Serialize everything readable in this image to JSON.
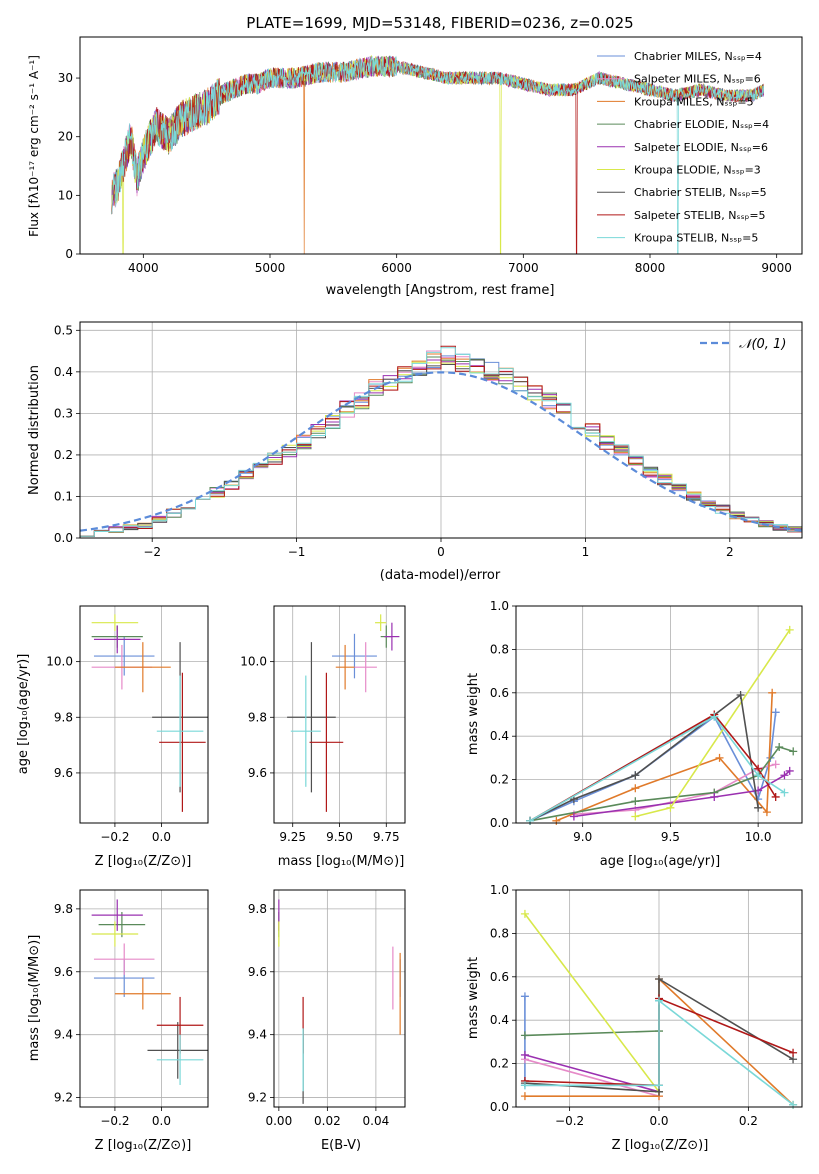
{
  "colors": [
    "#6a8fd8",
    "#e68ac8",
    "#e07a2a",
    "#5a8a5a",
    "#9a30b0",
    "#d8e84a",
    "#505050",
    "#b01818",
    "#7ad8d8"
  ],
  "chart_data": [
    {
      "type": "line",
      "title": "PLATE=1699, MJD=53148, FIBERID=0236, z=0.025",
      "xlabel": "wavelength [Angstrom, rest frame]",
      "ylabel": "Flux [fλ10⁻¹⁷ erg cm⁻² s⁻¹ A⁻¹]",
      "xlim": [
        3500,
        9200
      ],
      "ylim": [
        0,
        37
      ],
      "xticks": [
        4000,
        5000,
        6000,
        7000,
        8000,
        9000
      ],
      "yticks": [
        0,
        10,
        20,
        30
      ],
      "grid": false,
      "legend": "top-right",
      "series": [
        {
          "name": "Chabrier MILES, Nₛₛₚ=4"
        },
        {
          "name": "Salpeter MILES, Nₛₛₚ=6"
        },
        {
          "name": "Kroupa MILES, Nₛₛₚ=5"
        },
        {
          "name": "Chabrier ELODIE, Nₛₛₚ=4"
        },
        {
          "name": "Salpeter ELODIE, Nₛₛₚ=6"
        },
        {
          "name": "Kroupa ELODIE, Nₛₛₚ=3"
        },
        {
          "name": "Chabrier STELIB, Nₛₛₚ=5"
        },
        {
          "name": "Salpeter STELIB, Nₛₛₚ=5"
        },
        {
          "name": "Kroupa STELIB, Nₛₛₚ=5"
        }
      ],
      "envelope": {
        "x": [
          3750,
          3800,
          3850,
          3900,
          3950,
          4000,
          4100,
          4200,
          4300,
          4400,
          4500,
          4600,
          4700,
          4800,
          4900,
          5000,
          5200,
          5400,
          5600,
          5800,
          6000,
          6200,
          6400,
          6600,
          6800,
          7000,
          7200,
          7400,
          7600,
          7800,
          8000,
          8200,
          8400,
          8600,
          8800,
          8900
        ],
        "y": [
          10,
          12,
          16,
          20,
          13,
          17,
          22,
          20,
          23,
          24,
          25,
          27,
          28,
          29,
          29,
          30,
          30,
          31,
          31,
          32,
          32,
          31,
          30,
          30,
          30,
          29,
          28,
          28,
          30,
          29,
          28,
          27,
          28,
          27,
          27,
          28
        ]
      }
    },
    {
      "type": "histogram",
      "xlabel": "(data-model)/error",
      "ylabel": "Normed distribution",
      "xlim": [
        -2.5,
        2.5
      ],
      "ylim": [
        0,
        0.52
      ],
      "xticks": [
        -2,
        -1,
        0,
        1,
        2
      ],
      "yticks": [
        0.0,
        0.1,
        0.2,
        0.3,
        0.4,
        0.5
      ],
      "legend_label": "𝒩(0, 1)",
      "bins": [
        -2.5,
        -2.4,
        -2.3,
        -2.2,
        -2.1,
        -2.0,
        -1.9,
        -1.8,
        -1.7,
        -1.6,
        -1.5,
        -1.4,
        -1.3,
        -1.2,
        -1.1,
        -1.0,
        -0.9,
        -0.8,
        -0.7,
        -0.6,
        -0.5,
        -0.4,
        -0.3,
        -0.2,
        -0.1,
        0.0,
        0.1,
        0.2,
        0.3,
        0.4,
        0.5,
        0.6,
        0.7,
        0.8,
        0.9,
        1.0,
        1.1,
        1.2,
        1.3,
        1.4,
        1.5,
        1.6,
        1.7,
        1.8,
        1.9,
        2.0,
        2.1,
        2.2,
        2.3,
        2.4,
        2.5
      ],
      "mean_heights": [
        0.01,
        0.015,
        0.02,
        0.025,
        0.03,
        0.045,
        0.06,
        0.075,
        0.09,
        0.11,
        0.13,
        0.15,
        0.17,
        0.19,
        0.21,
        0.23,
        0.26,
        0.28,
        0.31,
        0.33,
        0.36,
        0.37,
        0.39,
        0.41,
        0.43,
        0.44,
        0.42,
        0.41,
        0.4,
        0.39,
        0.37,
        0.35,
        0.33,
        0.31,
        0.28,
        0.26,
        0.23,
        0.21,
        0.19,
        0.16,
        0.14,
        0.12,
        0.1,
        0.085,
        0.07,
        0.055,
        0.045,
        0.035,
        0.025,
        0.02
      ]
    },
    {
      "type": "errorbar",
      "xlabel": "Z [log₁₀(Z/Z⊙)]",
      "ylabel": "age  [log₁₀(age/yr)]",
      "xlim": [
        -0.35,
        0.2
      ],
      "ylim": [
        9.42,
        10.2
      ],
      "xticks": [
        -0.2,
        0.0
      ],
      "yticks": [
        9.6,
        9.8,
        10.0
      ],
      "points": [
        {
          "x": -0.16,
          "y": 10.02,
          "xerr": 0.13,
          "yerr": 0.07
        },
        {
          "x": -0.17,
          "y": 9.98,
          "xerr": 0.13,
          "yerr": 0.08
        },
        {
          "x": -0.08,
          "y": 9.98,
          "xerr": 0.12,
          "yerr": 0.09
        },
        {
          "x": -0.19,
          "y": 10.09,
          "xerr": 0.11,
          "yerr": 0.04
        },
        {
          "x": -0.19,
          "y": 10.08,
          "xerr": 0.1,
          "yerr": 0.05
        },
        {
          "x": -0.2,
          "y": 10.14,
          "xerr": 0.1,
          "yerr": 0.03
        },
        {
          "x": 0.08,
          "y": 9.8,
          "xerr": 0.12,
          "yerr": 0.27
        },
        {
          "x": 0.09,
          "y": 9.71,
          "xerr": 0.1,
          "yerr": 0.25
        },
        {
          "x": 0.08,
          "y": 9.75,
          "xerr": 0.1,
          "yerr": 0.2
        }
      ]
    },
    {
      "type": "errorbar",
      "xlabel": "mass [log₁₀(M/M⊙)]",
      "xlim": [
        9.15,
        9.85
      ],
      "ylim": [
        9.42,
        10.2
      ],
      "xticks": [
        9.25,
        9.5,
        9.75
      ],
      "yticks": [
        9.6,
        9.8,
        10.0
      ],
      "points": [
        {
          "x": 9.58,
          "y": 10.02,
          "xerr": 0.12,
          "yerr": 0.08
        },
        {
          "x": 9.64,
          "y": 9.98,
          "xerr": 0.06,
          "yerr": 0.09
        },
        {
          "x": 9.53,
          "y": 9.98,
          "xerr": 0.05,
          "yerr": 0.08
        },
        {
          "x": 9.75,
          "y": 10.09,
          "xerr": 0.03,
          "yerr": 0.04
        },
        {
          "x": 9.78,
          "y": 10.09,
          "xerr": 0.04,
          "yerr": 0.05
        },
        {
          "x": 9.72,
          "y": 10.14,
          "xerr": 0.03,
          "yerr": 0.03
        },
        {
          "x": 9.35,
          "y": 9.8,
          "xerr": 0.13,
          "yerr": 0.27
        },
        {
          "x": 9.43,
          "y": 9.71,
          "xerr": 0.09,
          "yerr": 0.25
        },
        {
          "x": 9.32,
          "y": 9.75,
          "xerr": 0.08,
          "yerr": 0.2
        }
      ]
    },
    {
      "type": "line",
      "xlabel": "age  [log₁₀(age/yr)]",
      "ylabel": "mass weight",
      "xlim": [
        8.62,
        10.25
      ],
      "ylim": [
        0,
        1.0
      ],
      "xticks": [
        9.0,
        9.5,
        10.0
      ],
      "yticks": [
        0.0,
        0.2,
        0.4,
        0.6,
        0.8,
        1.0
      ],
      "series": [
        {
          "x": [
            8.7,
            8.95,
            9.3,
            9.75,
            10.0,
            10.07,
            10.1
          ],
          "y": [
            0.01,
            0.1,
            0.22,
            0.49,
            0.11,
            0.3,
            0.51
          ]
        },
        {
          "x": [
            8.95,
            9.3,
            9.75,
            10.0,
            10.1
          ],
          "y": [
            0.04,
            0.06,
            0.14,
            0.25,
            0.27
          ]
        },
        {
          "x": [
            8.85,
            9.3,
            9.78,
            10.05,
            10.08
          ],
          "y": [
            0.01,
            0.16,
            0.3,
            0.05,
            0.6
          ]
        },
        {
          "x": [
            8.7,
            9.3,
            9.75,
            10.0,
            10.12,
            10.2
          ],
          "y": [
            0.01,
            0.1,
            0.14,
            0.22,
            0.35,
            0.33
          ]
        },
        {
          "x": [
            8.95,
            9.75,
            10.0,
            10.15,
            10.18
          ],
          "y": [
            0.03,
            0.12,
            0.15,
            0.22,
            0.24
          ]
        },
        {
          "x": [
            9.3,
            9.5,
            10.18
          ],
          "y": [
            0.03,
            0.07,
            0.89
          ]
        },
        {
          "x": [
            8.7,
            8.95,
            9.3,
            9.9,
            10.0
          ],
          "y": [
            0.01,
            0.11,
            0.22,
            0.59,
            0.07
          ]
        },
        {
          "x": [
            8.7,
            9.75,
            10.0,
            10.1
          ],
          "y": [
            0.01,
            0.5,
            0.25,
            0.12
          ]
        },
        {
          "x": [
            8.7,
            9.75,
            10.0,
            10.15
          ],
          "y": [
            0.01,
            0.49,
            0.22,
            0.14
          ]
        }
      ]
    },
    {
      "type": "errorbar",
      "xlabel": "Z [log₁₀(Z/Z⊙)]",
      "ylabel": "mass [log₁₀(M/M⊙)]",
      "xlim": [
        -0.35,
        0.2
      ],
      "ylim": [
        9.17,
        9.86
      ],
      "xticks": [
        -0.2,
        0.0
      ],
      "yticks": [
        9.2,
        9.4,
        9.6,
        9.8
      ],
      "points": [
        {
          "x": -0.16,
          "y": 9.58,
          "xerr": 0.13,
          "yerr": 0.06
        },
        {
          "x": -0.16,
          "y": 9.64,
          "xerr": 0.13,
          "yerr": 0.05
        },
        {
          "x": -0.08,
          "y": 9.53,
          "xerr": 0.12,
          "yerr": 0.05
        },
        {
          "x": -0.17,
          "y": 9.75,
          "xerr": 0.1,
          "yerr": 0.04
        },
        {
          "x": -0.19,
          "y": 9.78,
          "xerr": 0.11,
          "yerr": 0.05
        },
        {
          "x": -0.2,
          "y": 9.72,
          "xerr": 0.1,
          "yerr": 0.04
        },
        {
          "x": 0.07,
          "y": 9.35,
          "xerr": 0.13,
          "yerr": 0.09
        },
        {
          "x": 0.08,
          "y": 9.43,
          "xerr": 0.1,
          "yerr": 0.09
        },
        {
          "x": 0.08,
          "y": 9.32,
          "xerr": 0.1,
          "yerr": 0.08
        }
      ]
    },
    {
      "type": "errorbar",
      "xlabel": "E(B-V)",
      "xlim": [
        -0.002,
        0.052
      ],
      "ylim": [
        9.17,
        9.86
      ],
      "xticks": [
        0.0,
        0.02,
        0.04
      ],
      "yticks": [
        9.2,
        9.4,
        9.6,
        9.8
      ],
      "points": [
        {
          "x": 0.05,
          "y": 9.58,
          "xerr": 0,
          "yerr": 0.06
        },
        {
          "x": 0.047,
          "y": 9.58,
          "xerr": 0,
          "yerr": 0.1
        },
        {
          "x": 0.05,
          "y": 9.53,
          "xerr": 0,
          "yerr": 0.13
        },
        {
          "x": 0.0,
          "y": 9.75,
          "xerr": 0,
          "yerr": 0.04
        },
        {
          "x": 0.0,
          "y": 9.78,
          "xerr": 0,
          "yerr": 0.05
        },
        {
          "x": 0.0,
          "y": 9.72,
          "xerr": 0,
          "yerr": 0.04
        },
        {
          "x": 0.01,
          "y": 9.3,
          "xerr": 0,
          "yerr": 0.12
        },
        {
          "x": 0.01,
          "y": 9.43,
          "xerr": 0,
          "yerr": 0.09
        },
        {
          "x": 0.01,
          "y": 9.32,
          "xerr": 0,
          "yerr": 0.1
        }
      ]
    },
    {
      "type": "line",
      "xlabel": "Z [log₁₀(Z/Z⊙)]",
      "ylabel": "mass weight",
      "xlim": [
        -0.32,
        0.32
      ],
      "ylim": [
        0,
        1.0
      ],
      "xticks": [
        -0.2,
        0.0,
        0.2
      ],
      "yticks": [
        0.0,
        0.2,
        0.4,
        0.6,
        0.8,
        1.0
      ],
      "series": [
        {
          "x": [
            -0.3,
            -0.3,
            0.0,
            0.0
          ],
          "y": [
            0.51,
            0.1,
            0.1,
            0.49
          ]
        },
        {
          "x": [
            -0.3,
            0.0
          ],
          "y": [
            0.22,
            0.05
          ]
        },
        {
          "x": [
            -0.3,
            0.0,
            0.0,
            0.3
          ],
          "y": [
            0.05,
            0.05,
            0.59,
            0.01
          ]
        },
        {
          "x": [
            -0.3,
            0.0
          ],
          "y": [
            0.33,
            0.35
          ]
        },
        {
          "x": [
            -0.3,
            0.0
          ],
          "y": [
            0.24,
            0.07
          ]
        },
        {
          "x": [
            -0.3,
            0.0
          ],
          "y": [
            0.89,
            0.07
          ]
        },
        {
          "x": [
            -0.3,
            0.0,
            0.0,
            0.3
          ],
          "y": [
            0.11,
            0.07,
            0.59,
            0.22
          ]
        },
        {
          "x": [
            -0.3,
            0.0,
            0.0,
            0.3
          ],
          "y": [
            0.12,
            0.1,
            0.5,
            0.25
          ]
        },
        {
          "x": [
            -0.3,
            0.0,
            0.0,
            0.3
          ],
          "y": [
            0.1,
            0.1,
            0.49,
            0.01
          ]
        }
      ]
    }
  ]
}
